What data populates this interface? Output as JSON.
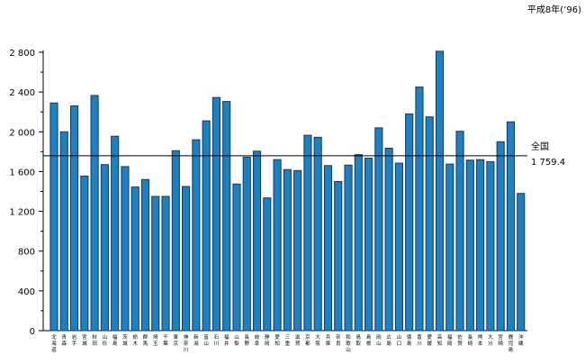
{
  "note": "平成8年(’96)",
  "chart_data": {
    "type": "bar",
    "title": "",
    "xlabel": "",
    "ylabel": "",
    "ylim": [
      0,
      2800
    ],
    "yticks": [
      0,
      400,
      800,
      1200,
      1600,
      2000,
      2400,
      2800
    ],
    "ytick_labels": [
      "0",
      "400",
      "800",
      "1 200",
      "1 600",
      "2 000",
      "2 400",
      "2 800"
    ],
    "bar_color": "#1f7fbf",
    "grid": false,
    "categories": [
      "北海道",
      "青森",
      "岩手",
      "宮城",
      "秋田",
      "山形",
      "福島",
      "茨城",
      "栃木",
      "群馬",
      "埼玉",
      "千葉",
      "東京",
      "神奈川",
      "新潟",
      "富山",
      "石川",
      "福井",
      "山梨",
      "長野",
      "岐阜",
      "静岡",
      "愛知",
      "三重",
      "滋賀",
      "京都",
      "大阪",
      "兵庫",
      "奈良",
      "和歌山",
      "鳥取",
      "島根",
      "岡山",
      "広島",
      "山口",
      "徳島",
      "香川",
      "愛媛",
      "高知",
      "福岡",
      "佐賀",
      "長崎",
      "熊本",
      "大分",
      "宮崎",
      "鹿児島",
      "沖縄"
    ],
    "values": [
      2290,
      2000,
      2260,
      1555,
      2365,
      1670,
      1955,
      1650,
      1445,
      1520,
      1350,
      1350,
      1810,
      1450,
      1920,
      2110,
      2345,
      2305,
      1475,
      1745,
      1805,
      1335,
      1720,
      1620,
      1610,
      1965,
      1945,
      1660,
      1500,
      1665,
      1770,
      1735,
      2040,
      1835,
      1685,
      2180,
      2450,
      2150,
      2810,
      1675,
      2005,
      1715,
      1720,
      1700,
      1900,
      2100,
      1380
    ],
    "reference": {
      "label": "全国",
      "value_label": "1 759.4",
      "value": 1759.4
    }
  }
}
